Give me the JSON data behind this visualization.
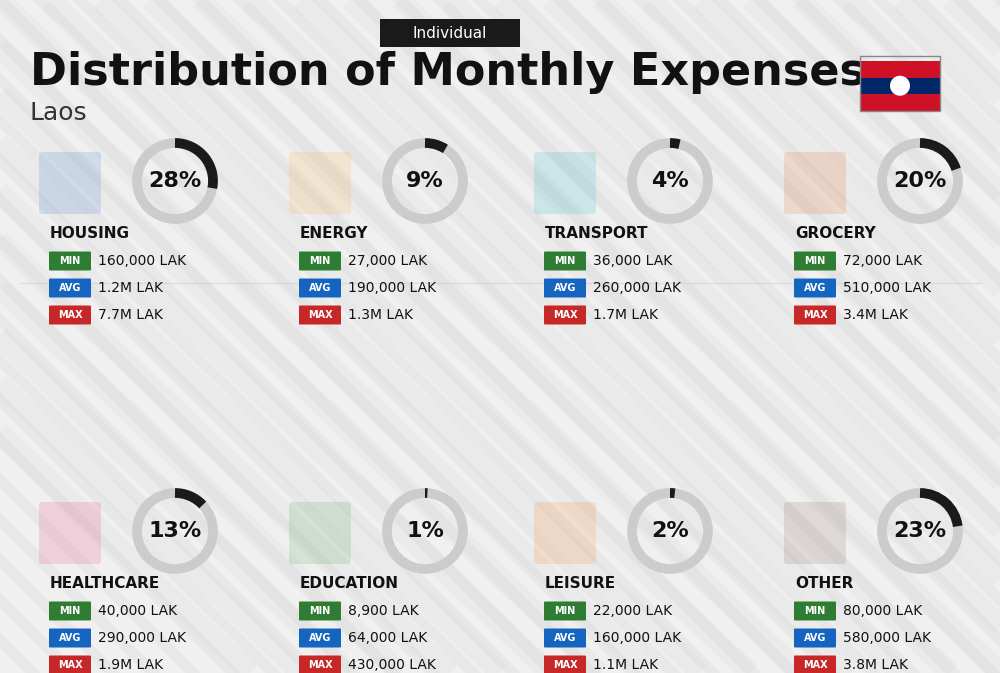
{
  "title": "Distribution of Monthly Expenses",
  "subtitle": "Individual",
  "country": "Laos",
  "bg_color": "#f0f0f0",
  "categories": [
    {
      "name": "HOUSING",
      "percent": 28,
      "min": "160,000 LAK",
      "avg": "1.2M LAK",
      "max": "7.7M LAK",
      "icon_color": "#1565C0",
      "row": 0,
      "col": 0
    },
    {
      "name": "ENERGY",
      "percent": 9,
      "min": "27,000 LAK",
      "avg": "190,000 LAK",
      "max": "1.3M LAK",
      "icon_color": "#F9A825",
      "row": 0,
      "col": 1
    },
    {
      "name": "TRANSPORT",
      "percent": 4,
      "min": "36,000 LAK",
      "avg": "260,000 LAK",
      "max": "1.7M LAK",
      "icon_color": "#00ACC1",
      "row": 0,
      "col": 2
    },
    {
      "name": "GROCERY",
      "percent": 20,
      "min": "72,000 LAK",
      "avg": "510,000 LAK",
      "max": "3.4M LAK",
      "icon_color": "#E65100",
      "row": 0,
      "col": 3
    },
    {
      "name": "HEALTHCARE",
      "percent": 13,
      "min": "40,000 LAK",
      "avg": "290,000 LAK",
      "max": "1.9M LAK",
      "icon_color": "#E91E63",
      "row": 1,
      "col": 0
    },
    {
      "name": "EDUCATION",
      "percent": 1,
      "min": "8,900 LAK",
      "avg": "64,000 LAK",
      "max": "430,000 LAK",
      "icon_color": "#388E3C",
      "row": 1,
      "col": 1
    },
    {
      "name": "LEISURE",
      "percent": 2,
      "min": "22,000 LAK",
      "avg": "160,000 LAK",
      "max": "1.1M LAK",
      "icon_color": "#FF6F00",
      "row": 1,
      "col": 2
    },
    {
      "name": "OTHER",
      "percent": 23,
      "min": "80,000 LAK",
      "avg": "580,000 LAK",
      "max": "3.8M LAK",
      "icon_color": "#795548",
      "row": 1,
      "col": 3
    }
  ],
  "min_color": "#2e7d32",
  "avg_color": "#1565c0",
  "max_color": "#c62828",
  "label_text_color": "#ffffff",
  "ring_color_active": "#1a1a1a",
  "ring_color_bg": "#cccccc"
}
